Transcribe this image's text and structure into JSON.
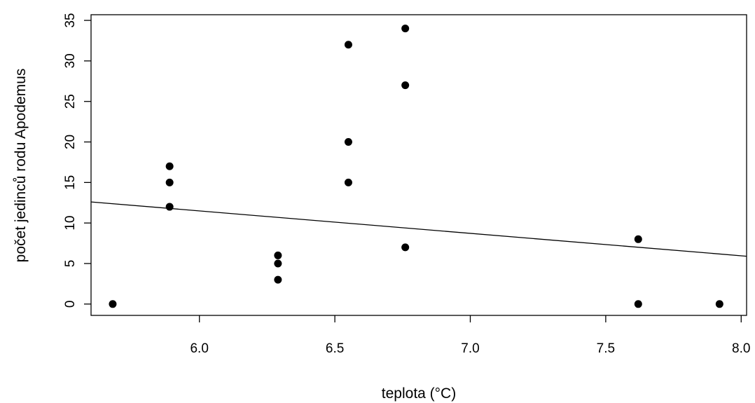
{
  "chart_data": {
    "type": "scatter",
    "title": "",
    "xlabel": "teplota (°C)",
    "ylabel": "počet jedinců rodu Apodemus",
    "xlim": [
      5.6,
      8.02
    ],
    "ylim": [
      -1.4,
      35.7
    ],
    "x_ticks": [
      6.0,
      6.5,
      7.0,
      7.5,
      8.0
    ],
    "x_tick_labels": [
      "6.0",
      "6.5",
      "7.0",
      "7.5",
      "8.0"
    ],
    "y_ticks": [
      0,
      5,
      10,
      15,
      20,
      25,
      30,
      35
    ],
    "y_tick_labels": [
      "0",
      "5",
      "10",
      "15",
      "20",
      "25",
      "30",
      "35"
    ],
    "grid": false,
    "series": [
      {
        "points": [
          {
            "x": 5.68,
            "y": 0
          },
          {
            "x": 5.89,
            "y": 17
          },
          {
            "x": 5.89,
            "y": 15
          },
          {
            "x": 5.89,
            "y": 12
          },
          {
            "x": 6.29,
            "y": 6
          },
          {
            "x": 6.29,
            "y": 5
          },
          {
            "x": 6.29,
            "y": 3
          },
          {
            "x": 6.55,
            "y": 32
          },
          {
            "x": 6.55,
            "y": 20
          },
          {
            "x": 6.55,
            "y": 15
          },
          {
            "x": 6.76,
            "y": 34
          },
          {
            "x": 6.76,
            "y": 27
          },
          {
            "x": 6.76,
            "y": 7
          },
          {
            "x": 7.62,
            "y": 8
          },
          {
            "x": 7.62,
            "y": 0
          },
          {
            "x": 7.92,
            "y": 0
          }
        ]
      }
    ],
    "regression_line": {
      "x": [
        5.6,
        8.02
      ],
      "y": [
        12.6,
        5.9
      ]
    },
    "colors": {
      "points": "#000000",
      "line": "#000000",
      "frame": "#000000"
    }
  }
}
